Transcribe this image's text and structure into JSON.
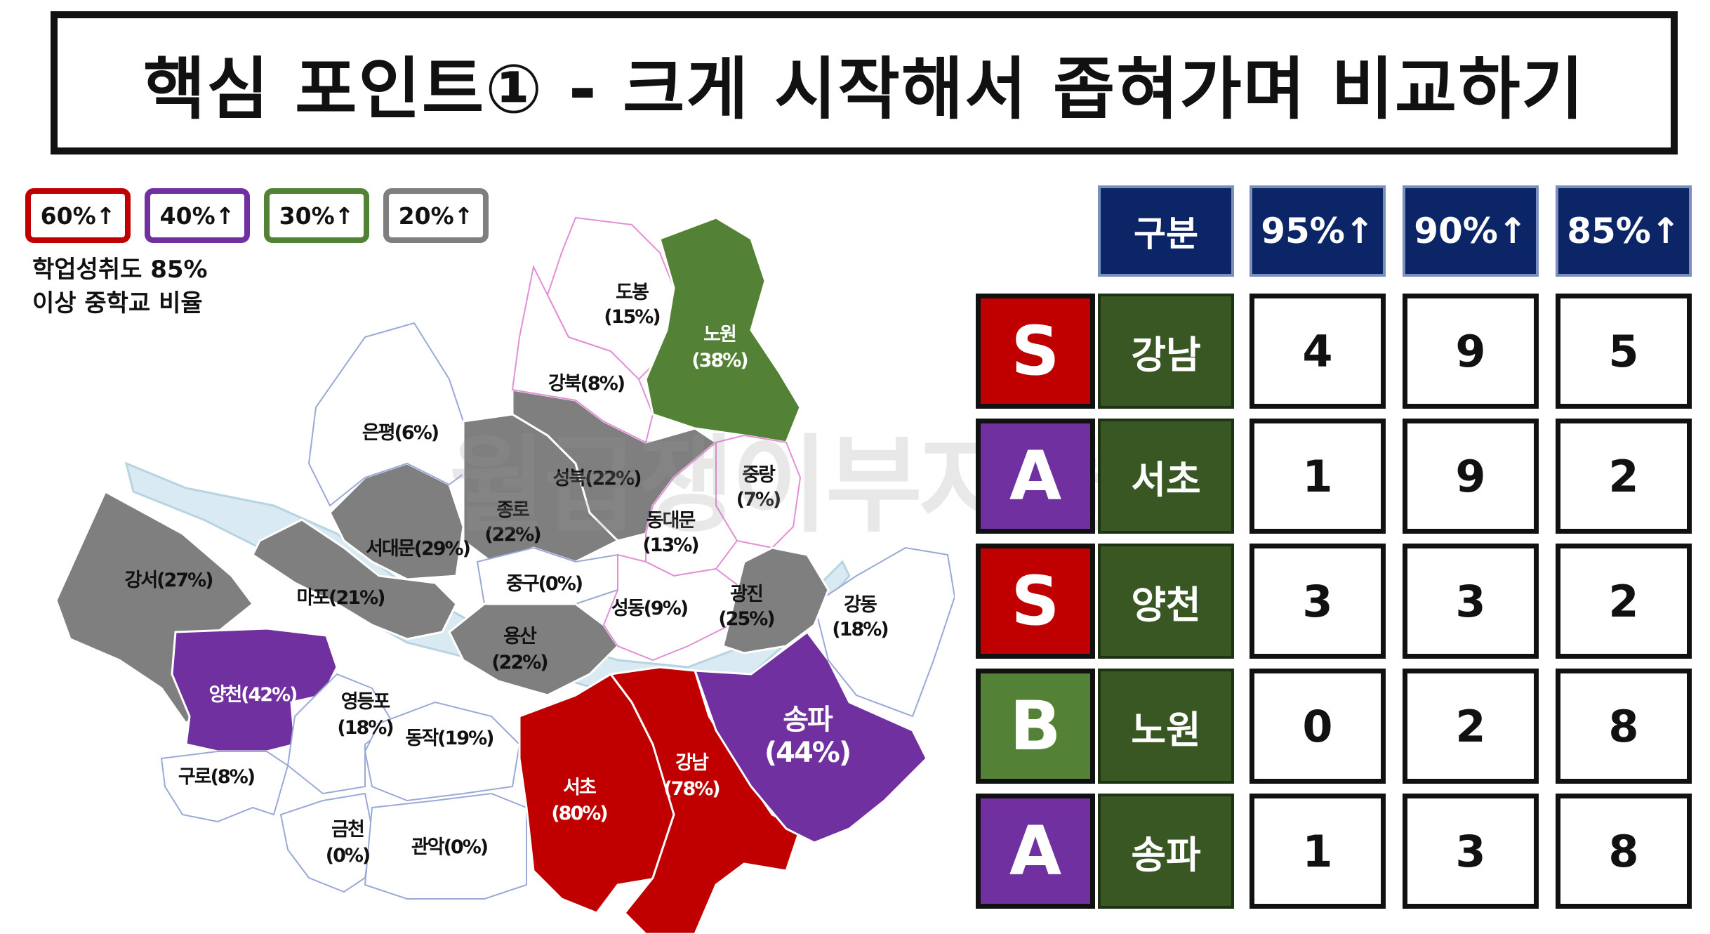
{
  "title": "핵심 포인트① - 크게 시작해서 좁혀가며 비교하기",
  "legend": {
    "items": [
      {
        "label": "60%↑",
        "color": "#c00000"
      },
      {
        "label": "40%↑",
        "color": "#7030a0"
      },
      {
        "label": "30%↑",
        "color": "#538135"
      },
      {
        "label": "20%↑",
        "color": "#7f7f7f"
      }
    ],
    "note_line1": "학업성취도 85%",
    "note_line2": "이상 중학교 비율"
  },
  "watermark": "월급쟁이부자들",
  "map": {
    "colors": {
      "red": "#c00000",
      "purple": "#7030a0",
      "green": "#538135",
      "gray": "#7f7f7f",
      "white": "#ffffff",
      "river": "#d9eaf2"
    },
    "regions": {
      "dobong": {
        "name": "도봉",
        "pct": "(15%)"
      },
      "nowon": {
        "name": "노원",
        "pct": "(38%)"
      },
      "gangbuk": {
        "name": "강북(8%)"
      },
      "eunpyeong": {
        "name": "은평(6%)"
      },
      "seongbuk": {
        "name": "성북(22%)"
      },
      "jungnang": {
        "name": "중랑",
        "pct": "(7%)"
      },
      "jongno": {
        "name": "종로",
        "pct": "(22%)"
      },
      "dongdaemun": {
        "name": "동대문",
        "pct": "(13%)"
      },
      "seodaemun": {
        "name": "서대문(29%)"
      },
      "gangseo": {
        "name": "강서(27%)"
      },
      "mapo": {
        "name": "마포(21%)"
      },
      "junggu": {
        "name": "중구(0%)"
      },
      "seongdong": {
        "name": "성동(9%)"
      },
      "gwangjin": {
        "name": "광진",
        "pct": "(25%)"
      },
      "gangdong": {
        "name": "강동",
        "pct": "(18%)"
      },
      "yongsan": {
        "name": "용산",
        "pct": "(22%)"
      },
      "yangcheon": {
        "name": "양천(42%)"
      },
      "yeongdeungpo": {
        "name": "영등포",
        "pct": "(18%)"
      },
      "dongjak": {
        "name": "동작(19%)"
      },
      "guro": {
        "name": "구로(8%)"
      },
      "seocho": {
        "name": "서초",
        "pct": "(80%)"
      },
      "gangnam": {
        "name": "강남",
        "pct": "(78%)"
      },
      "songpa": {
        "name": "송파",
        "pct": "(44%)"
      },
      "geumcheon": {
        "name": "금천",
        "pct": "(0%)"
      },
      "gwanak": {
        "name": "관악(0%)"
      }
    }
  },
  "table": {
    "headers": [
      "구분",
      "95%↑",
      "90%↑",
      "85%↑"
    ],
    "rows": [
      {
        "grade": "S",
        "grade_color": "#c00000",
        "name": "강남",
        "values": [
          "4",
          "9",
          "5"
        ]
      },
      {
        "grade": "A",
        "grade_color": "#7030a0",
        "name": "서초",
        "values": [
          "1",
          "9",
          "2"
        ]
      },
      {
        "grade": "S",
        "grade_color": "#c00000",
        "name": "양천",
        "values": [
          "3",
          "3",
          "2"
        ]
      },
      {
        "grade": "B",
        "grade_color": "#538135",
        "name": "노원",
        "values": [
          "0",
          "2",
          "8"
        ]
      },
      {
        "grade": "A",
        "grade_color": "#7030a0",
        "name": "송파",
        "values": [
          "1",
          "3",
          "8"
        ]
      }
    ]
  }
}
